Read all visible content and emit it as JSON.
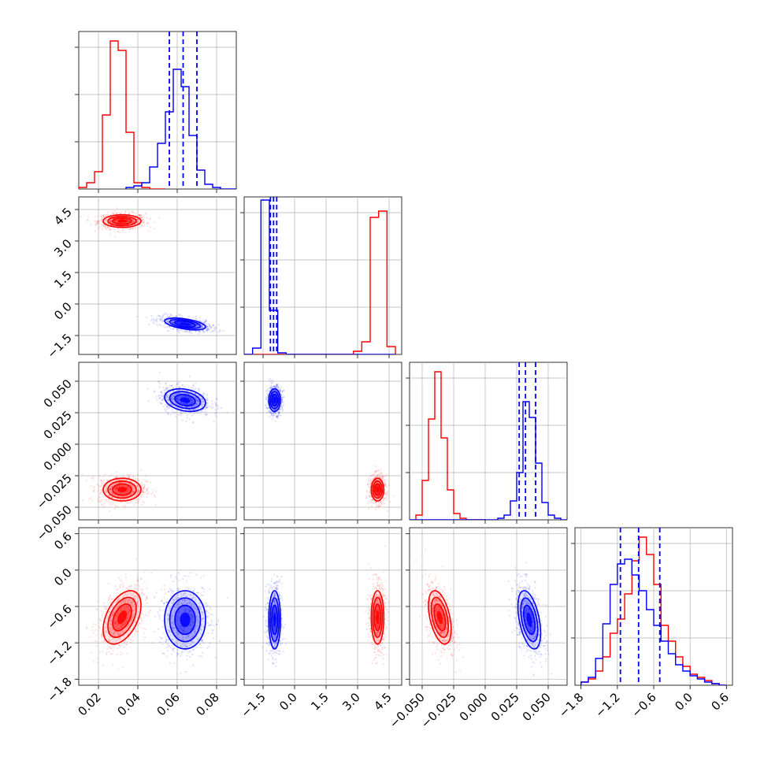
{
  "colors": {
    "red": "#ff0000",
    "blue": "#0000ff",
    "grid": "#b0b0b0"
  },
  "chart_data": {
    "type": "corner",
    "grid": true,
    "variables": [
      {
        "range": [
          0.01,
          0.09
        ],
        "ticks": [
          "0.02",
          "0.04",
          "0.06",
          "0.08"
        ]
      },
      {
        "range": [
          -2.4,
          5.1
        ],
        "ticks": [
          "−1.5",
          "0.0",
          "1.5",
          "3.0",
          "4.5"
        ]
      },
      {
        "range": [
          -0.06,
          0.065
        ],
        "ticks": [
          "−0.050",
          "−0.025",
          "0.000",
          "0.025",
          "0.050"
        ]
      },
      {
        "range": [
          -1.9,
          0.7
        ],
        "ticks": [
          "−1.8",
          "−1.2",
          "−0.6",
          "0.0",
          "0.6"
        ]
      }
    ],
    "series": [
      {
        "color": "red",
        "means": [
          0.032,
          3.95,
          -0.036,
          -0.78
        ],
        "sds": [
          0.0048,
          0.15,
          0.0045,
          0.22
        ],
        "hist": [
          {
            "edges": [
              0.01,
              0.014,
              0.018,
              0.022,
              0.026,
              0.03,
              0.034,
              0.038,
              0.042,
              0.046,
              0.05,
              0.054
            ],
            "counts": [
              0.01,
              0.04,
              0.11,
              0.47,
              0.94,
              0.88,
              0.36,
              0.04,
              0.01,
              0.0,
              0.0
            ]
          },
          {
            "edges": [
              -2.4,
              -2.0,
              -1.6,
              -1.2,
              -0.8,
              -0.4,
              0.0,
              0.4,
              0.8,
              1.2,
              1.6,
              2.0,
              2.4,
              2.8,
              3.2,
              3.6,
              4.0,
              4.4,
              4.8
            ],
            "counts": [
              0,
              0,
              0,
              0,
              0,
              0,
              0,
              0,
              0,
              0,
              0,
              0,
              0,
              0.02,
              0.08,
              0.87,
              0.91,
              0.05
            ]
          },
          {
            "edges": [
              -0.055,
              -0.05,
              -0.045,
              -0.04,
              -0.035,
              -0.03,
              -0.025,
              -0.02,
              -0.015,
              -0.01,
              -0.005,
              0.0
            ],
            "counts": [
              0.03,
              0.25,
              0.64,
              0.94,
              0.52,
              0.19,
              0.04,
              0.01,
              0.0,
              0.0,
              0.0
            ]
          },
          {
            "edges": [
              -1.8,
              -1.68,
              -1.56,
              -1.44,
              -1.32,
              -1.2,
              -1.08,
              -0.96,
              -0.84,
              -0.72,
              -0.6,
              -0.48,
              -0.36,
              -0.24,
              -0.12,
              0.0,
              0.12,
              0.24,
              0.36,
              0.48,
              0.6
            ],
            "counts": [
              0.02,
              0.04,
              0.09,
              0.18,
              0.33,
              0.42,
              0.58,
              0.79,
              0.94,
              0.83,
              0.64,
              0.38,
              0.28,
              0.18,
              0.12,
              0.07,
              0.05,
              0.03,
              0.01,
              0.0
            ]
          }
        ]
      },
      {
        "color": "blue",
        "means": [
          0.064,
          -0.95,
          0.035,
          -0.82
        ],
        "sds": [
          0.0052,
          0.14,
          0.0045,
          0.24
        ],
        "quantiles": [
          [
            0.056,
            0.063,
            0.07
          ],
          [
            -1.15,
            -1.0,
            -0.85
          ],
          [
            0.027,
            0.032,
            0.04
          ],
          [
            -1.15,
            -0.85,
            -0.5
          ]
        ],
        "hist": [
          {
            "edges": [
              0.034,
              0.038,
              0.042,
              0.046,
              0.05,
              0.054,
              0.058,
              0.062,
              0.066,
              0.07,
              0.074,
              0.078,
              0.082,
              0.086,
              0.09
            ],
            "counts": [
              0.01,
              0.02,
              0.04,
              0.14,
              0.29,
              0.49,
              0.76,
              0.65,
              0.34,
              0.12,
              0.03,
              0.01,
              0.0,
              0.0
            ]
          },
          {
            "edges": [
              -2.4,
              -2.0,
              -1.6,
              -1.2,
              -0.8,
              -0.4,
              0.0,
              0.4,
              0.8,
              1.2,
              1.6,
              2.0,
              2.4,
              2.8,
              3.2,
              3.6,
              4.0,
              4.4,
              4.8
            ],
            "counts": [
              0.0,
              0.04,
              0.98,
              0.28,
              0.01,
              0,
              0,
              0,
              0,
              0,
              0,
              0,
              0,
              0,
              0,
              0,
              0,
              0
            ]
          },
          {
            "edges": [
              -0.06,
              -0.055,
              -0.05,
              -0.045,
              -0.04,
              -0.035,
              -0.03,
              -0.025,
              -0.02,
              -0.015,
              -0.01,
              -0.005,
              0.0,
              0.005,
              0.01,
              0.015,
              0.02,
              0.025,
              0.03,
              0.035,
              0.04,
              0.045,
              0.05,
              0.055,
              0.06,
              0.065
            ],
            "counts": [
              0,
              0,
              0,
              0,
              0,
              0,
              0,
              0,
              0,
              0,
              0,
              0,
              0,
              0.0,
              0.01,
              0.03,
              0.12,
              0.3,
              0.75,
              0.65,
              0.36,
              0.11,
              0.03,
              0.01,
              0.0
            ]
          },
          {
            "edges": [
              -1.8,
              -1.68,
              -1.56,
              -1.44,
              -1.32,
              -1.2,
              -1.08,
              -0.96,
              -0.84,
              -0.72,
              -0.6,
              -0.48,
              -0.36,
              -0.24,
              -0.12,
              0.0,
              0.12,
              0.24,
              0.36,
              0.48,
              0.6
            ],
            "counts": [
              0.02,
              0.05,
              0.17,
              0.39,
              0.64,
              0.77,
              0.8,
              0.7,
              0.6,
              0.48,
              0.38,
              0.28,
              0.2,
              0.13,
              0.09,
              0.06,
              0.04,
              0.02,
              0.01,
              0.0
            ]
          }
        ]
      }
    ]
  }
}
